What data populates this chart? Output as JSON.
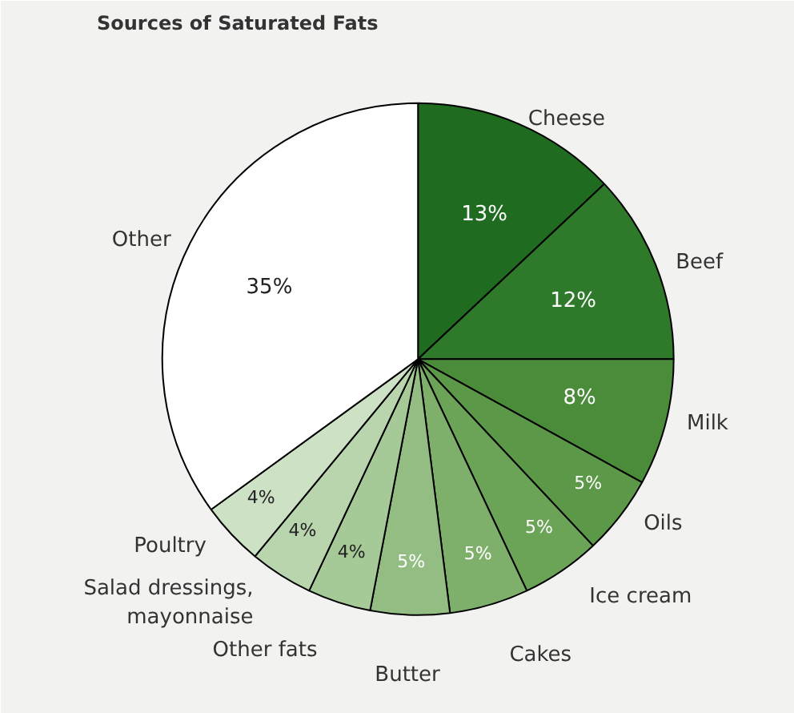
{
  "chart_data": {
    "type": "pie",
    "title": "Sources of Saturated Fats",
    "categories": [
      "Cheese",
      "Beef",
      "Milk",
      "Oils",
      "Ice cream",
      "Cakes",
      "Butter",
      "Other fats",
      "Salad dressings,\nmayonnaise",
      "Poultry",
      "Other"
    ],
    "values": [
      13,
      12,
      8,
      5,
      5,
      5,
      5,
      4,
      4,
      4,
      35
    ],
    "value_labels": [
      "13%",
      "12%",
      "8%",
      "5%",
      "5%",
      "5%",
      "5%",
      "4%",
      "4%",
      "4%",
      "35%"
    ],
    "colors": [
      "#1f6b1f",
      "#2f7a2a",
      "#4a8c3a",
      "#5b9848",
      "#6ba457",
      "#7fb06b",
      "#93bd82",
      "#a6c998",
      "#b9d5ad",
      "#cde2c4",
      "#ffffff"
    ]
  }
}
